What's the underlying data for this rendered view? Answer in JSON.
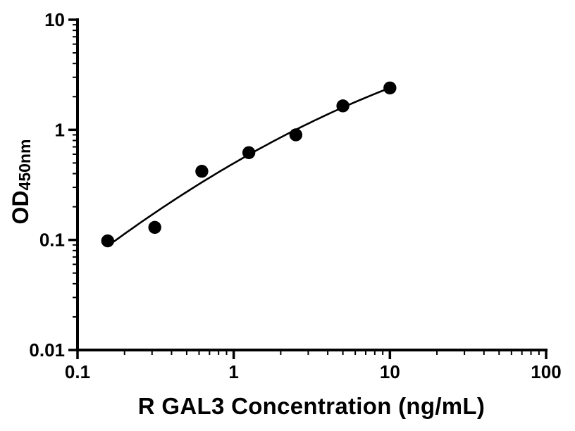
{
  "page": {
    "background": "#ffffff"
  },
  "chart_data": {
    "type": "scatter",
    "subtype": "standard-curve-with-fit",
    "title": "",
    "xlabel": "R GAL3 Concentration (ng/mL)",
    "ylabel": "OD450nm",
    "ylabel_main": "OD",
    "ylabel_sub": "450nm",
    "xscale": "log",
    "yscale": "log",
    "xlim": [
      0.1,
      100
    ],
    "ylim": [
      0.01,
      10
    ],
    "x_ticks": [
      0.1,
      1,
      10,
      100
    ],
    "x_tick_labels": [
      "0.1",
      "1",
      "10",
      "100"
    ],
    "y_ticks": [
      0.01,
      0.1,
      1,
      10
    ],
    "y_tick_labels": [
      "0.01",
      "0.1",
      "1",
      "10"
    ],
    "grid": false,
    "legend": "none",
    "axis_color": "#000000",
    "series": [
      {
        "name": "points",
        "marker": "filled-circle",
        "color": "#000000",
        "x": [
          0.156,
          0.3125,
          0.625,
          1.25,
          2.5,
          5,
          10
        ],
        "y": [
          0.098,
          0.13,
          0.42,
          0.62,
          0.9,
          1.65,
          2.4
        ]
      }
    ],
    "fit_line": {
      "style": "smooth-curve",
      "color": "#000000"
    }
  }
}
